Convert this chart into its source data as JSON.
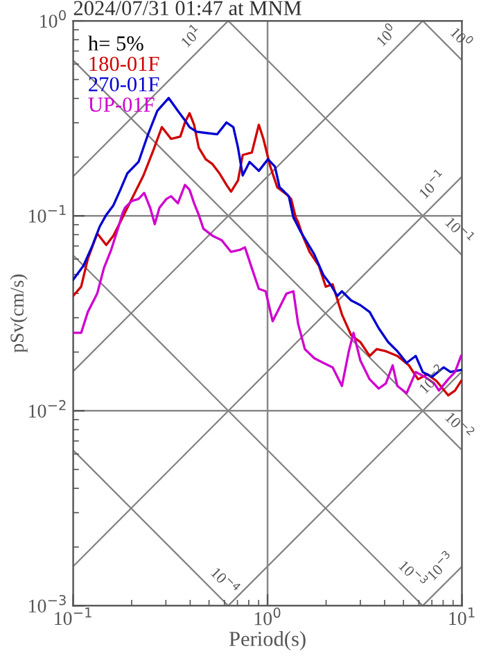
{
  "chart_data": {
    "type": "line",
    "title": "2024/07/31 01:47 at MNM",
    "xlabel": "Period(s)",
    "ylabel": "pSv(cm/s)",
    "legend_title": "h= 5%",
    "legend": "top left",
    "grid": true,
    "log": "xy",
    "xlim": [
      0.1,
      10
    ],
    "ylim": [
      0.001,
      1
    ],
    "xticks": [
      {
        "value": 0.1,
        "label": "10$^{−1}$"
      },
      {
        "value": 1,
        "label": "10$^{0}$"
      },
      {
        "value": 10,
        "label": "10$^{1}$"
      }
    ],
    "yticks": [
      {
        "value": 0.001,
        "label": "10$^{−3}$"
      },
      {
        "value": 0.01,
        "label": "10$^{−2}$"
      },
      {
        "value": 0.1,
        "label": "10$^{−1}$"
      },
      {
        "value": 1,
        "label": "10$^{0}$"
      }
    ],
    "series": [
      {
        "name": "180-01F",
        "color": "#d00000",
        "x": [
          0.1,
          0.11,
          0.119,
          0.133,
          0.148,
          0.161,
          0.175,
          0.185,
          0.206,
          0.23,
          0.256,
          0.286,
          0.319,
          0.356,
          0.376,
          0.397,
          0.419,
          0.443,
          0.481,
          0.521,
          0.566,
          0.615,
          0.649,
          0.705,
          0.745,
          0.83,
          0.902,
          0.952,
          1.033,
          1.122,
          1.251,
          1.322,
          1.396,
          1.435,
          1.516,
          1.644,
          1.837,
          1.991,
          2.162,
          2.412,
          2.692,
          3.0,
          3.35,
          3.64,
          4.06,
          4.65,
          5.33,
          5.94,
          6.64,
          7.4,
          8.49,
          9.21,
          9.89
        ],
        "values": [
          0.0388,
          0.0433,
          0.0601,
          0.0812,
          0.0708,
          0.079,
          0.093,
          0.104,
          0.129,
          0.161,
          0.211,
          0.285,
          0.248,
          0.255,
          0.301,
          0.336,
          0.293,
          0.223,
          0.195,
          0.184,
          0.165,
          0.144,
          0.133,
          0.152,
          0.205,
          0.211,
          0.293,
          0.248,
          0.179,
          0.14,
          0.129,
          0.122,
          0.098,
          0.093,
          0.079,
          0.0653,
          0.0554,
          0.0433,
          0.0445,
          0.0312,
          0.0244,
          0.0225,
          0.0191,
          0.0207,
          0.0202,
          0.0191,
          0.0171,
          0.0145,
          0.0154,
          0.0142,
          0.012,
          0.0127,
          0.0142
        ]
      },
      {
        "name": "270-01F",
        "color": "#0000d0",
        "x": [
          0.1,
          0.113,
          0.126,
          0.137,
          0.148,
          0.161,
          0.175,
          0.19,
          0.217,
          0.243,
          0.271,
          0.31,
          0.346,
          0.376,
          0.397,
          0.431,
          0.468,
          0.551,
          0.615,
          0.667,
          0.705,
          0.745,
          0.808,
          0.902,
          1.005,
          1.091,
          1.153,
          1.218,
          1.286,
          1.358,
          1.396,
          1.475,
          1.6,
          1.738,
          1.936,
          2.104,
          2.285,
          2.412,
          2.692,
          3.0,
          3.35,
          3.73,
          4.17,
          4.65,
          5.19,
          5.78,
          6.28,
          7.01,
          8.04,
          8.73,
          9.89
        ],
        "values": [
          0.047,
          0.0554,
          0.0708,
          0.088,
          0.101,
          0.113,
          0.136,
          0.165,
          0.189,
          0.262,
          0.345,
          0.402,
          0.345,
          0.309,
          0.285,
          0.27,
          0.267,
          0.262,
          0.301,
          0.285,
          0.223,
          0.161,
          0.189,
          0.17,
          0.195,
          0.179,
          0.14,
          0.133,
          0.126,
          0.098,
          0.093,
          0.0834,
          0.0728,
          0.0635,
          0.0497,
          0.0445,
          0.0388,
          0.041,
          0.0368,
          0.0348,
          0.0321,
          0.0265,
          0.0225,
          0.0202,
          0.0176,
          0.0191,
          0.0158,
          0.0149,
          0.0167,
          0.0158,
          0.0162
        ]
      },
      {
        "name": "UP-01F",
        "color": "#d000d0",
        "x": [
          0.1,
          0.11,
          0.119,
          0.133,
          0.144,
          0.157,
          0.17,
          0.18,
          0.185,
          0.2,
          0.217,
          0.232,
          0.249,
          0.263,
          0.278,
          0.302,
          0.319,
          0.346,
          0.376,
          0.397,
          0.419,
          0.443,
          0.468,
          0.521,
          0.582,
          0.649,
          0.724,
          0.765,
          0.83,
          0.902,
          0.978,
          1.062,
          1.153,
          1.251,
          1.358,
          1.435,
          1.556,
          1.738,
          1.936,
          2.162,
          2.412,
          2.618,
          2.767,
          3.0,
          3.35,
          3.73,
          4.06,
          4.4,
          4.65,
          5.19,
          5.78,
          6.46,
          7.2,
          7.61,
          8.49,
          9.21,
          9.89
        ],
        "values": [
          0.0251,
          0.0251,
          0.0321,
          0.0399,
          0.0539,
          0.067,
          0.0858,
          0.104,
          0.11,
          0.119,
          0.122,
          0.131,
          0.11,
          0.0906,
          0.11,
          0.122,
          0.126,
          0.116,
          0.144,
          0.136,
          0.116,
          0.101,
          0.0858,
          0.079,
          0.0748,
          0.0653,
          0.067,
          0.0689,
          0.0539,
          0.0422,
          0.041,
          0.0288,
          0.0339,
          0.0399,
          0.041,
          0.028,
          0.0207,
          0.0186,
          0.0176,
          0.0167,
          0.0134,
          0.0202,
          0.0251,
          0.0181,
          0.0145,
          0.013,
          0.0138,
          0.0171,
          0.0134,
          0.0123,
          0.0158,
          0.0149,
          0.0138,
          0.0127,
          0.0145,
          0.0158,
          0.0191
        ]
      },
      {
        "color": "#808080",
        "x": [
          0.1,
          0.628
        ],
        "values": [
          0.00628,
          0.001
        ]
      },
      {
        "color": "#808080",
        "x": [
          0.1,
          6.28
        ],
        "values": [
          0.0628,
          0.001
        ]
      },
      {
        "color": "#808080",
        "x": [
          0.1,
          10
        ],
        "values": [
          0.628,
          0.00628
        ]
      },
      {
        "color": "#808080",
        "x": [
          0.628,
          10
        ],
        "values": [
          1,
          0.0628
        ]
      },
      {
        "color": "#808080",
        "x": [
          6.28,
          10
        ],
        "values": [
          1,
          0.628
        ]
      },
      {
        "color": "#808080",
        "x": [
          6.28,
          10
        ],
        "values": [
          0.001,
          0.00159
        ]
      },
      {
        "color": "#808080",
        "x": [
          0.628,
          10
        ],
        "values": [
          0.001,
          0.0159
        ]
      },
      {
        "color": "#808080",
        "x": [
          0.1,
          10
        ],
        "values": [
          0.00159,
          0.159
        ]
      },
      {
        "color": "#808080",
        "x": [
          0.1,
          6.28
        ],
        "values": [
          0.0159,
          1
        ]
      },
      {
        "color": "#808080",
        "x": [
          0.1,
          0.628
        ],
        "values": [
          0.159,
          1
        ]
      }
    ],
    "annotations": [
      {
        "text": "10$^{1}$",
        "x": 0.46,
        "y": 0.73
      },
      {
        "text": "10$^{0}$",
        "x": 4.65,
        "y": 0.74
      },
      {
        "text": "10$^{0}$",
        "x": 8.7,
        "y": 0.722
      },
      {
        "text": "10$^{−1}$",
        "x": 8.0,
        "y": 0.127
      },
      {
        "text": "10$^{−1}$",
        "x": 8.5,
        "y": 0.0739
      },
      {
        "text": "10$^{−2}$",
        "x": 8.0,
        "y": 0.0127
      },
      {
        "text": "10$^{−2}$",
        "x": 8.5,
        "y": 0.00739
      },
      {
        "text": "10$^{−3}$",
        "x": 8.8,
        "y": 0.0014
      },
      {
        "text": "10$^{−3}$",
        "x": 4.9,
        "y": 0.00128
      },
      {
        "text": "10$^{−4}$",
        "x": 0.53,
        "y": 0.00118
      }
    ]
  }
}
